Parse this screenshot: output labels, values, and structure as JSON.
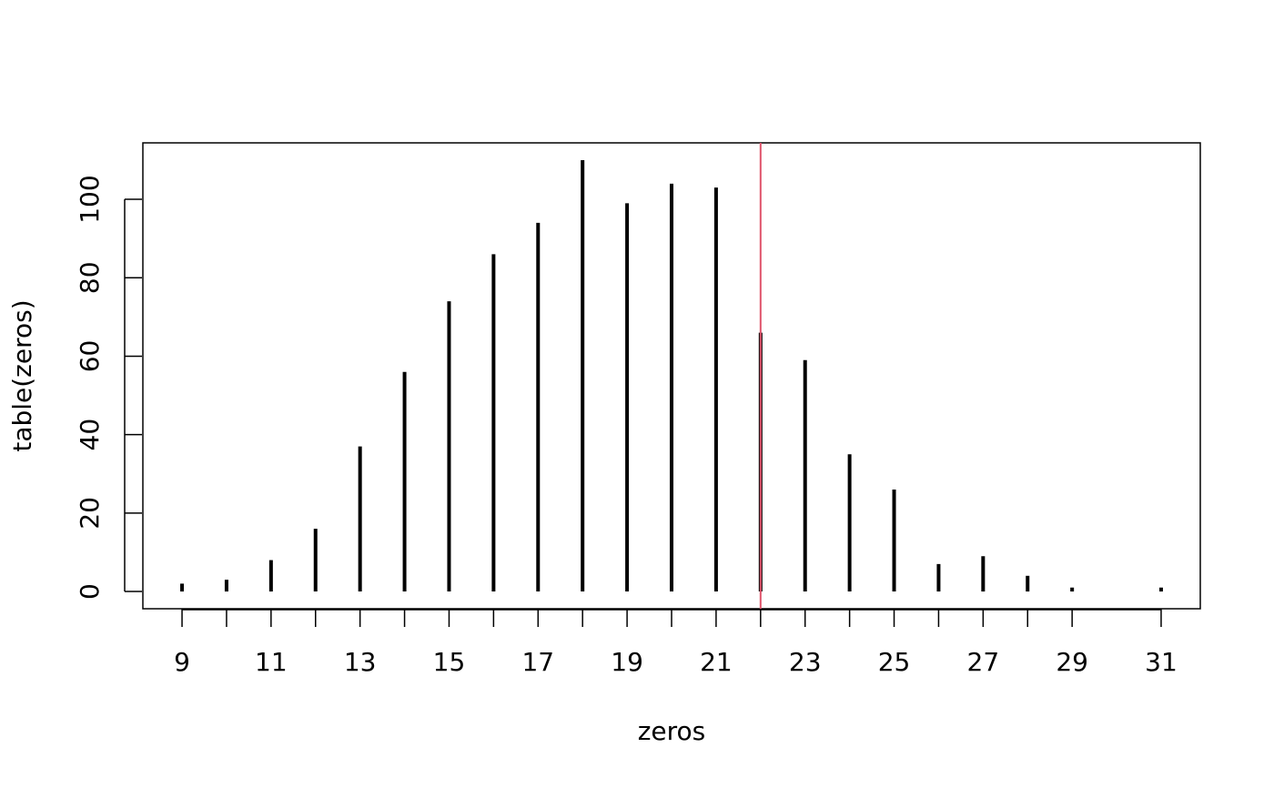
{
  "chart_data": {
    "type": "spike",
    "x_label": "zeros",
    "y_label": "table(zeros)",
    "x": [
      9,
      10,
      11,
      12,
      13,
      14,
      15,
      16,
      17,
      18,
      19,
      20,
      21,
      22,
      23,
      24,
      25,
      26,
      27,
      28,
      29,
      31
    ],
    "values": [
      2,
      3,
      8,
      16,
      37,
      56,
      74,
      86,
      94,
      110,
      99,
      104,
      103,
      66,
      59,
      35,
      26,
      7,
      9,
      4,
      1,
      1
    ],
    "color": "#000000",
    "xlim": [
      8.12,
      31.88
    ],
    "xticks": [
      9,
      11,
      13,
      15,
      17,
      19,
      21,
      23,
      25,
      27,
      29,
      31
    ],
    "ylim": [
      -4.4,
      114.4
    ],
    "yticks": [
      0,
      20,
      40,
      60,
      80,
      100
    ],
    "vline": {
      "value": 22,
      "color": "#df536b"
    }
  }
}
